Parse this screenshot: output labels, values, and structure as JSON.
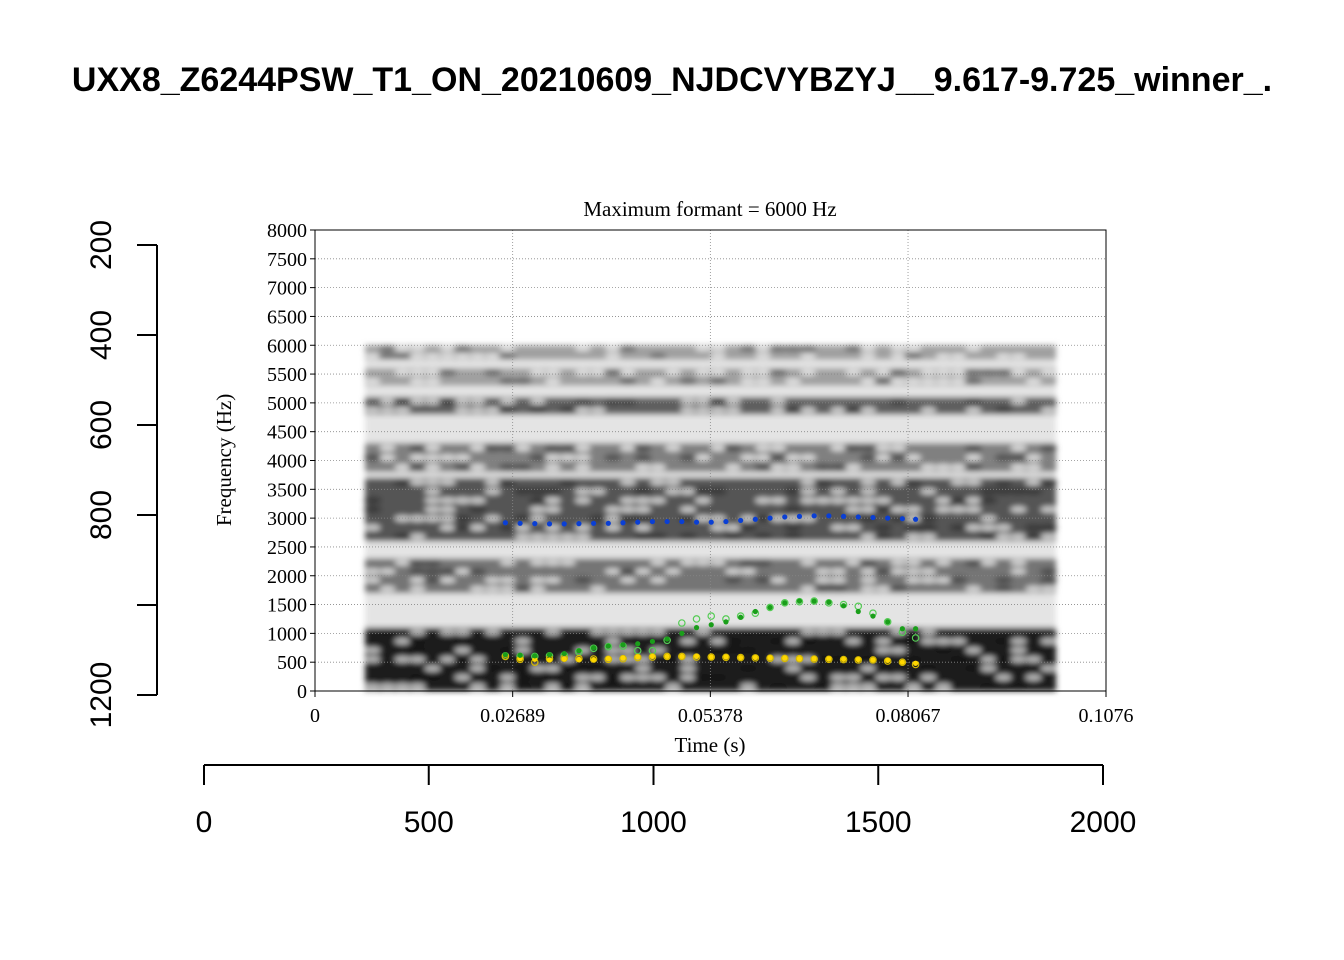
{
  "page_title": "UXX8_Z6244PSW_T1_ON_20210609_NJDCVYBZYJ__9.617-9.725_winner_.",
  "chart_data": [
    {
      "type": "axes-frame",
      "x_axis": {
        "ticks": [
          0,
          500,
          1000,
          1500,
          2000
        ],
        "labels": [
          "0",
          "500",
          "1000",
          "1500",
          "2000"
        ],
        "range": [
          0,
          2000
        ]
      },
      "y_axis": {
        "ticks": [
          200,
          400,
          600,
          800,
          1000,
          1200
        ],
        "labels": [
          "200",
          "400",
          "600",
          "800",
          "",
          "1200"
        ],
        "range": [
          200,
          1200
        ],
        "inverted": true
      }
    },
    {
      "type": "scatter",
      "subtype": "spectrogram-with-formant-tracks",
      "title": "Maximum formant  =  6000 Hz",
      "xlabel": "Time (s)",
      "ylabel": "Frequency (Hz)",
      "xlim": [
        0,
        0.1076
      ],
      "ylim": [
        0,
        8000
      ],
      "x_ticks": [
        "0",
        "0.02689",
        "0.05378",
        "0.08067",
        "0.1076"
      ],
      "y_ticks": [
        "0",
        "500",
        "1000",
        "1500",
        "2000",
        "2500",
        "3000",
        "3500",
        "4000",
        "4500",
        "5000",
        "5500",
        "6000",
        "6500",
        "7000",
        "7500",
        "8000"
      ],
      "grid": true,
      "spectrogram": {
        "time_range": [
          0.0068,
          0.1008
        ],
        "frequency_top": 6000,
        "dark_bands_hz": [
          {
            "low": 0,
            "high": 1100,
            "intensity": 0.95
          },
          {
            "low": 1700,
            "high": 2300,
            "intensity": 0.55
          },
          {
            "low": 2600,
            "high": 3700,
            "intensity": 0.7
          },
          {
            "low": 3800,
            "high": 4300,
            "intensity": 0.5
          },
          {
            "low": 4800,
            "high": 5100,
            "intensity": 0.65
          },
          {
            "low": 5300,
            "high": 5600,
            "intensity": 0.35
          },
          {
            "low": 5750,
            "high": 6000,
            "intensity": 0.35
          }
        ]
      },
      "series": [
        {
          "color": "#ffd700",
          "points": [
            [
              0.0259,
              620
            ],
            [
              0.0279,
              560
            ],
            [
              0.0299,
              550
            ],
            [
              0.0319,
              540
            ],
            [
              0.0339,
              560
            ],
            [
              0.0359,
              550
            ],
            [
              0.0379,
              545
            ],
            [
              0.0399,
              560
            ],
            [
              0.0419,
              570
            ],
            [
              0.0439,
              590
            ],
            [
              0.0459,
              600
            ],
            [
              0.0479,
              600
            ],
            [
              0.0499,
              600
            ],
            [
              0.0519,
              600
            ],
            [
              0.0539,
              590
            ],
            [
              0.0559,
              590
            ],
            [
              0.0579,
              580
            ],
            [
              0.0599,
              580
            ],
            [
              0.0619,
              575
            ],
            [
              0.0639,
              570
            ],
            [
              0.0659,
              560
            ],
            [
              0.0679,
              560
            ],
            [
              0.0699,
              555
            ],
            [
              0.0719,
              550
            ],
            [
              0.0739,
              545
            ],
            [
              0.0759,
              540
            ],
            [
              0.0779,
              530
            ],
            [
              0.0799,
              500
            ],
            [
              0.0817,
              480
            ]
          ]
        },
        {
          "color": "#1a9e1a",
          "points": [
            [
              0.0259,
              630
            ],
            [
              0.0279,
              620
            ],
            [
              0.0299,
              610
            ],
            [
              0.0319,
              630
            ],
            [
              0.0339,
              650
            ],
            [
              0.0359,
              700
            ],
            [
              0.0379,
              750
            ],
            [
              0.0399,
              780
            ],
            [
              0.0419,
              800
            ],
            [
              0.0439,
              820
            ],
            [
              0.0459,
              860
            ],
            [
              0.0479,
              900
            ],
            [
              0.0499,
              1000
            ],
            [
              0.0519,
              1100
            ],
            [
              0.0539,
              1150
            ],
            [
              0.0559,
              1200
            ],
            [
              0.0579,
              1280
            ],
            [
              0.0599,
              1380
            ],
            [
              0.0619,
              1450
            ],
            [
              0.0639,
              1530
            ],
            [
              0.0659,
              1560
            ],
            [
              0.0679,
              1560
            ],
            [
              0.0699,
              1540
            ],
            [
              0.0719,
              1480
            ],
            [
              0.0739,
              1380
            ],
            [
              0.0759,
              1300
            ],
            [
              0.0779,
              1200
            ],
            [
              0.0799,
              1080
            ],
            [
              0.0817,
              1080
            ]
          ]
        },
        {
          "color": "#0a3fd4",
          "points": [
            [
              0.0259,
              2920
            ],
            [
              0.0279,
              2910
            ],
            [
              0.0299,
              2905
            ],
            [
              0.0319,
              2900
            ],
            [
              0.0339,
              2900
            ],
            [
              0.0359,
              2905
            ],
            [
              0.0379,
              2910
            ],
            [
              0.0399,
              2910
            ],
            [
              0.0419,
              2920
            ],
            [
              0.0439,
              2930
            ],
            [
              0.0459,
              2940
            ],
            [
              0.0479,
              2940
            ],
            [
              0.0499,
              2940
            ],
            [
              0.0519,
              2930
            ],
            [
              0.0539,
              2930
            ],
            [
              0.0559,
              2940
            ],
            [
              0.0579,
              2960
            ],
            [
              0.0599,
              2980
            ],
            [
              0.0619,
              3000
            ],
            [
              0.0639,
              3020
            ],
            [
              0.0659,
              3030
            ],
            [
              0.0679,
              3040
            ],
            [
              0.0699,
              3040
            ],
            [
              0.0719,
              3030
            ],
            [
              0.0739,
              3020
            ],
            [
              0.0759,
              3010
            ],
            [
              0.0779,
              3000
            ],
            [
              0.0799,
              2990
            ],
            [
              0.0817,
              2980
            ]
          ]
        }
      ],
      "candidate_series": [
        {
          "color": "#55cc55",
          "points": [
            [
              0.0259,
              610
            ],
            [
              0.0279,
              600
            ],
            [
              0.0299,
              600
            ],
            [
              0.0319,
              610
            ],
            [
              0.0339,
              620
            ],
            [
              0.0359,
              680
            ],
            [
              0.0379,
              740
            ],
            [
              0.0399,
              770
            ],
            [
              0.0419,
              780
            ],
            [
              0.0439,
              700
            ],
            [
              0.0459,
              700
            ],
            [
              0.0479,
              880
            ],
            [
              0.0499,
              1180
            ],
            [
              0.0519,
              1250
            ],
            [
              0.0539,
              1300
            ],
            [
              0.0559,
              1250
            ],
            [
              0.0579,
              1300
            ],
            [
              0.0599,
              1350
            ],
            [
              0.0619,
              1450
            ],
            [
              0.0639,
              1530
            ],
            [
              0.0659,
              1550
            ],
            [
              0.0679,
              1560
            ],
            [
              0.0699,
              1530
            ],
            [
              0.0719,
              1500
            ],
            [
              0.0739,
              1470
            ],
            [
              0.0759,
              1350
            ],
            [
              0.0779,
              1200
            ],
            [
              0.0799,
              1020
            ],
            [
              0.0817,
              920
            ]
          ]
        },
        {
          "color": "#d4b800",
          "points": [
            [
              0.0259,
              600
            ],
            [
              0.0279,
              550
            ],
            [
              0.0299,
              500
            ],
            [
              0.0319,
              560
            ],
            [
              0.0339,
              570
            ],
            [
              0.0359,
              560
            ],
            [
              0.0379,
              555
            ],
            [
              0.0399,
              550
            ],
            [
              0.0419,
              560
            ],
            [
              0.0439,
              580
            ],
            [
              0.0459,
              590
            ],
            [
              0.0479,
              600
            ],
            [
              0.0499,
              600
            ],
            [
              0.0519,
              590
            ],
            [
              0.0539,
              590
            ],
            [
              0.0559,
              585
            ],
            [
              0.0579,
              580
            ],
            [
              0.0599,
              575
            ],
            [
              0.0619,
              570
            ],
            [
              0.0639,
              565
            ],
            [
              0.0659,
              560
            ],
            [
              0.0679,
              555
            ],
            [
              0.0699,
              550
            ],
            [
              0.0719,
              545
            ],
            [
              0.0739,
              540
            ],
            [
              0.0759,
              540
            ],
            [
              0.0779,
              520
            ],
            [
              0.0799,
              500
            ],
            [
              0.0817,
              460
            ]
          ]
        }
      ]
    }
  ]
}
